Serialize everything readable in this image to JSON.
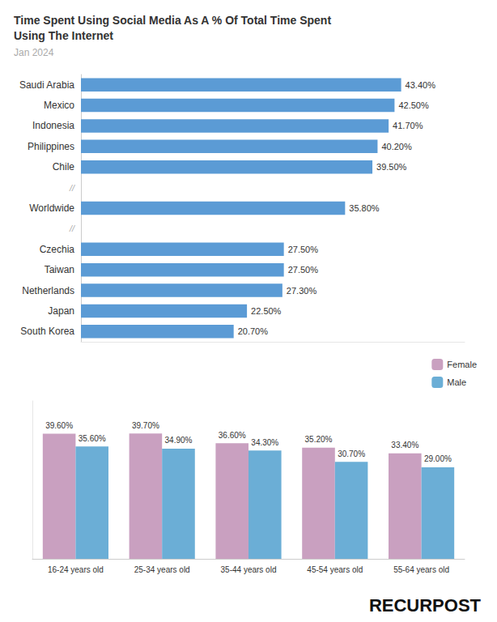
{
  "chart_data": [
    {
      "type": "bar",
      "orientation": "horizontal",
      "title": "Time Spent Using Social Media As A % Of Total Time Spent\nUsing The Internet",
      "subtitle": "Jan 2024",
      "categories": [
        "Saudi Arabia",
        "Mexico",
        "Indonesia",
        "Philippines",
        "Chile",
        "//",
        "Worldwide",
        "//",
        "Czechia",
        "Taiwan",
        "Netherlands",
        "Japan",
        "South Korea"
      ],
      "values": [
        43.4,
        42.5,
        41.7,
        40.2,
        39.5,
        null,
        35.8,
        null,
        27.5,
        27.5,
        27.3,
        22.5,
        20.7
      ],
      "value_labels": [
        "43.40%",
        "42.50%",
        "41.70%",
        "40.20%",
        "39.50%",
        null,
        "35.80%",
        null,
        "27.50%",
        "27.50%",
        "27.30%",
        "22.50%",
        "20.70%"
      ],
      "color": "#5b9bd5",
      "xlim": [
        0,
        52
      ],
      "data_labels": true,
      "tick_labels": "y",
      "grid": false
    },
    {
      "type": "bar",
      "categories": [
        "16-24 years old",
        "25-34 years old",
        "35-44 years old",
        "45-54 years old",
        "55-64 years old"
      ],
      "series": [
        {
          "name": "Female",
          "color": "#c9a0c0",
          "values": [
            39.6,
            39.7,
            36.6,
            35.2,
            33.4
          ],
          "value_labels": [
            "39.60%",
            "39.70%",
            "36.60%",
            "35.20%",
            "33.40%"
          ]
        },
        {
          "name": "Male",
          "color": "#6baed6",
          "values": [
            35.6,
            34.9,
            34.3,
            30.7,
            29.0
          ],
          "value_labels": [
            "35.60%",
            "34.90%",
            "34.30%",
            "30.70%",
            "29.00%"
          ]
        }
      ],
      "ylim": [
        0,
        50
      ],
      "data_labels": true,
      "tick_labels": "x",
      "grid": false,
      "legend": "upper right",
      "annotations": [
        "RECURPOST"
      ]
    }
  ]
}
